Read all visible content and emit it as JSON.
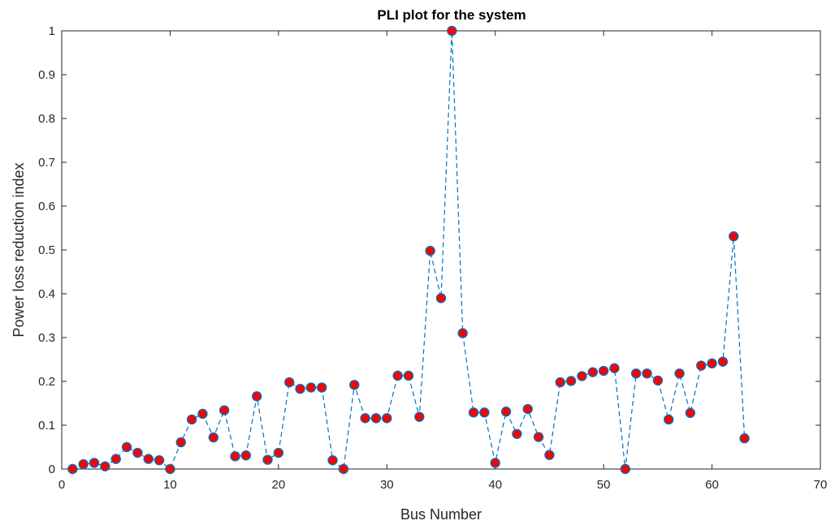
{
  "chart_data": {
    "type": "line",
    "title": "PLI plot for the system",
    "xlabel": "Bus Number",
    "ylabel": "Power loss reduction index",
    "xlim": [
      0,
      70
    ],
    "ylim": [
      0,
      1
    ],
    "xticks": [
      0,
      10,
      20,
      30,
      40,
      50,
      60,
      70
    ],
    "yticks": [
      0,
      0.1,
      0.2,
      0.3,
      0.4,
      0.5,
      0.6,
      0.7,
      0.8,
      0.9,
      1
    ],
    "xtick_labels": [
      "0",
      "10",
      "20",
      "30",
      "40",
      "50",
      "60",
      "70"
    ],
    "ytick_labels": [
      "0",
      "0.1",
      "0.2",
      "0.3",
      "0.4",
      "0.5",
      "0.6",
      "0.7",
      "0.8",
      "0.9",
      "1"
    ],
    "grid": false,
    "series": [
      {
        "line_style": "dashed",
        "line_color": "#0072BD",
        "marker": "circle",
        "marker_face_color": "#FF0000",
        "marker_edge_color": "#0072BD",
        "x": [
          1,
          2,
          3,
          4,
          5,
          6,
          7,
          8,
          9,
          10,
          11,
          12,
          13,
          14,
          15,
          16,
          17,
          18,
          19,
          20,
          21,
          22,
          23,
          24,
          25,
          26,
          27,
          28,
          29,
          30,
          31,
          32,
          33,
          34,
          35,
          36,
          37,
          38,
          39,
          40,
          41,
          42,
          43,
          44,
          45,
          46,
          47,
          48,
          49,
          50,
          51,
          52,
          53,
          54,
          55,
          56,
          57,
          58,
          59,
          60,
          61,
          62,
          63
        ],
        "y": [
          0.0,
          0.011,
          0.014,
          0.006,
          0.023,
          0.05,
          0.037,
          0.023,
          0.02,
          0.0,
          0.061,
          0.113,
          0.126,
          0.072,
          0.134,
          0.029,
          0.031,
          0.166,
          0.021,
          0.037,
          0.198,
          0.183,
          0.186,
          0.186,
          0.02,
          0.0,
          0.192,
          0.116,
          0.116,
          0.116,
          0.213,
          0.213,
          0.119,
          0.498,
          0.39,
          1.0,
          0.31,
          0.129,
          0.129,
          0.014,
          0.131,
          0.08,
          0.137,
          0.073,
          0.032,
          0.198,
          0.201,
          0.212,
          0.221,
          0.224,
          0.23,
          0.0,
          0.218,
          0.218,
          0.202,
          0.113,
          0.218,
          0.128,
          0.236,
          0.241,
          0.245,
          0.531,
          0.07
        ]
      }
    ]
  }
}
